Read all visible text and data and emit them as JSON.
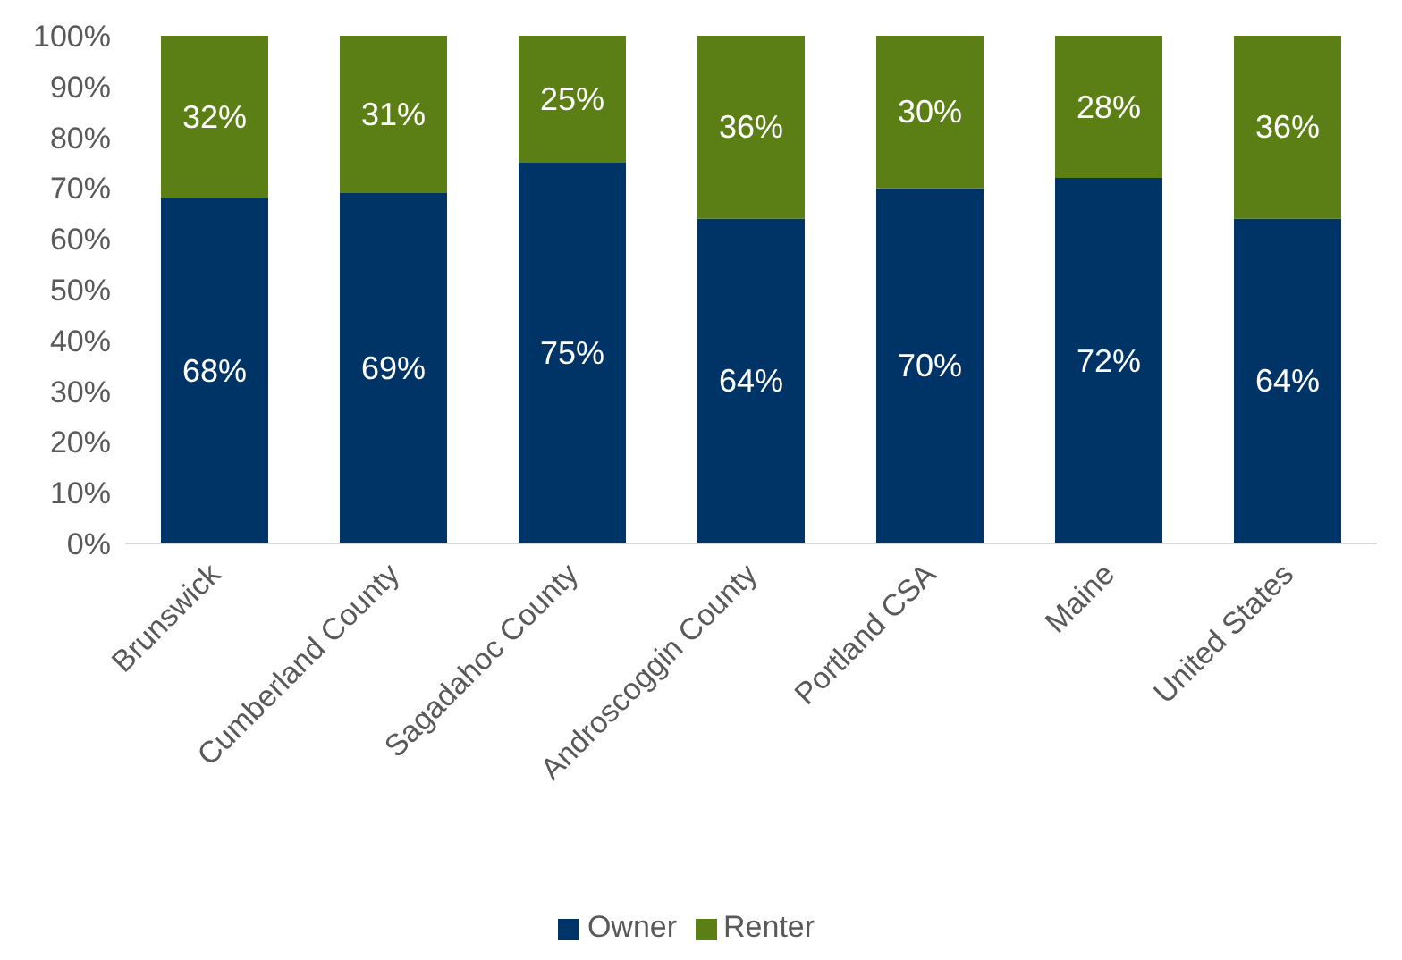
{
  "chart_data": {
    "type": "bar",
    "stacked": true,
    "categories": [
      "Brunswick",
      "Cumberland County",
      "Sagadahoc County",
      "Androscoggin County",
      "Portland CSA",
      "Maine",
      "United States"
    ],
    "series": [
      {
        "name": "Owner",
        "color": "#003366",
        "values": [
          68,
          69,
          75,
          64,
          70,
          72,
          64
        ],
        "value_labels": [
          "68%",
          "69%",
          "75%",
          "64%",
          "70%",
          "72%",
          "64%"
        ]
      },
      {
        "name": "Renter",
        "color": "#5b7f15",
        "values": [
          32,
          31,
          25,
          36,
          30,
          28,
          36
        ],
        "value_labels": [
          "32%",
          "31%",
          "25%",
          "36%",
          "30%",
          "28%",
          "36%"
        ]
      }
    ],
    "ylim": [
      0,
      100
    ],
    "yticks": [
      {
        "value": 0,
        "label": "0%"
      },
      {
        "value": 10,
        "label": "10%"
      },
      {
        "value": 20,
        "label": "20%"
      },
      {
        "value": 30,
        "label": "30%"
      },
      {
        "value": 40,
        "label": "40%"
      },
      {
        "value": 50,
        "label": "50%"
      },
      {
        "value": 60,
        "label": "60%"
      },
      {
        "value": 70,
        "label": "70%"
      },
      {
        "value": 80,
        "label": "80%"
      },
      {
        "value": 90,
        "label": "90%"
      },
      {
        "value": 100,
        "label": "100%"
      }
    ],
    "legend": "bottom"
  }
}
